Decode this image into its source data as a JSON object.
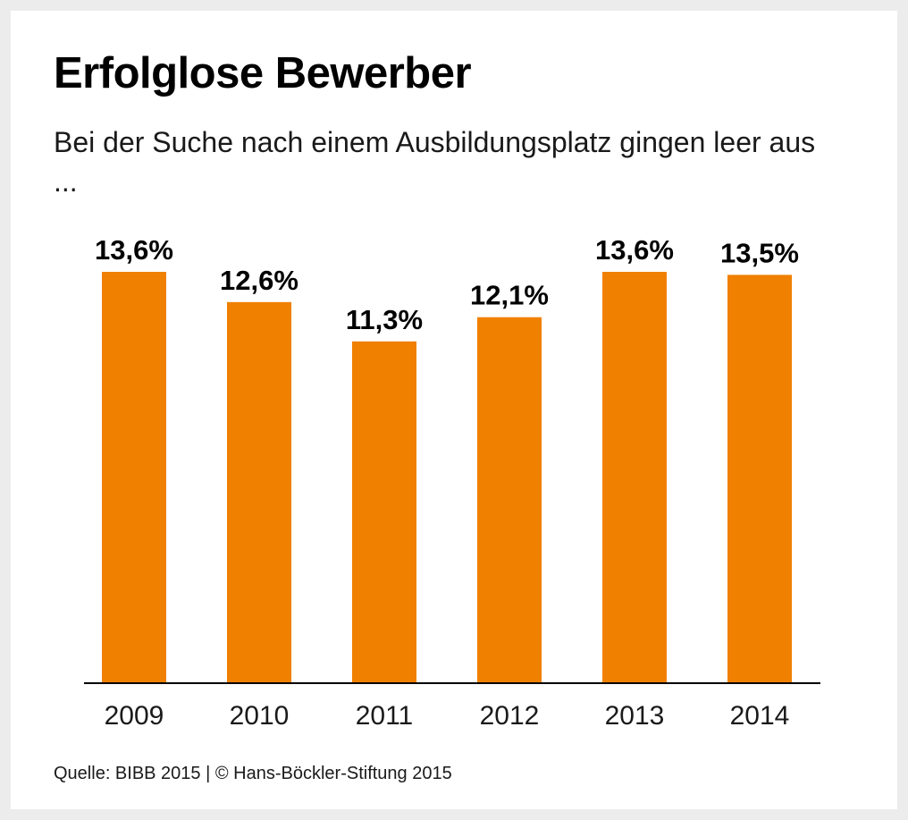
{
  "header": {
    "title": "Erfolglose Bewerber",
    "subtitle": "Bei der Suche nach einem Ausbildungsplatz gingen leer aus ..."
  },
  "footer": {
    "source": "Quelle: BIBB 2015 | © Hans-Böckler-Stiftung 2015"
  },
  "chart_data": {
    "type": "bar",
    "title": "Erfolglose Bewerber",
    "subtitle": "Bei der Suche nach einem Ausbildungsplatz gingen leer aus ...",
    "xlabel": "",
    "ylabel": "",
    "unit": "%",
    "categories": [
      "2009",
      "2010",
      "2011",
      "2012",
      "2013",
      "2014"
    ],
    "values": [
      13.6,
      12.6,
      11.3,
      12.1,
      13.6,
      13.5
    ],
    "value_labels": [
      "13,6%",
      "12,6%",
      "11,3%",
      "12,1%",
      "13,6%",
      "13,5%"
    ],
    "ylim": [
      0,
      13.6
    ],
    "grid": false,
    "legend": "none",
    "bar_color": "#f08000"
  }
}
